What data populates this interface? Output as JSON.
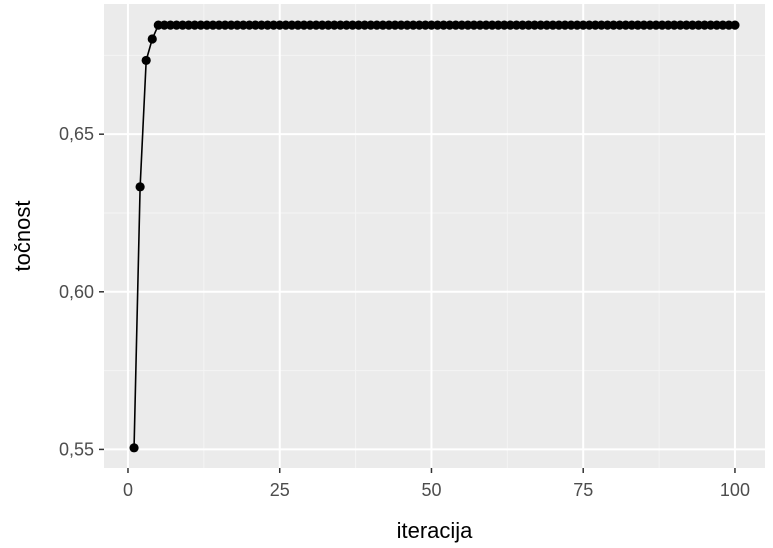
{
  "chart_data": {
    "type": "line",
    "xlabel": "iteracija",
    "ylabel": "točnost",
    "xlim": [
      -3.95,
      104.95
    ],
    "ylim": [
      0.5441,
      0.6913
    ],
    "x_ticks": [
      0,
      25,
      50,
      75,
      100
    ],
    "x_tick_labels": [
      "0",
      "25",
      "50",
      "75",
      "100"
    ],
    "y_ticks": [
      0.55,
      0.6,
      0.65
    ],
    "y_tick_labels": [
      "0,55",
      "0,60",
      "0,65"
    ],
    "grid": true,
    "legend": "none",
    "series": [
      {
        "marker": "point",
        "color": "#000000",
        "x": [
          1,
          2,
          3,
          4,
          5,
          6,
          7,
          8,
          9,
          10,
          11,
          12,
          13,
          14,
          15,
          16,
          17,
          18,
          19,
          20,
          21,
          22,
          23,
          24,
          25,
          26,
          27,
          28,
          29,
          30,
          31,
          32,
          33,
          34,
          35,
          36,
          37,
          38,
          39,
          40,
          41,
          42,
          43,
          44,
          45,
          46,
          47,
          48,
          49,
          50,
          51,
          52,
          53,
          54,
          55,
          56,
          57,
          58,
          59,
          60,
          61,
          62,
          63,
          64,
          65,
          66,
          67,
          68,
          69,
          70,
          71,
          72,
          73,
          74,
          75,
          76,
          77,
          78,
          79,
          80,
          81,
          82,
          83,
          84,
          85,
          86,
          87,
          88,
          89,
          90,
          91,
          92,
          93,
          94,
          95,
          96,
          97,
          98,
          99,
          100
        ],
        "y": [
          0.5505,
          0.6333,
          0.6734,
          0.6802,
          0.6846,
          0.6846,
          0.6846,
          0.6846,
          0.6846,
          0.6846,
          0.6846,
          0.6846,
          0.6846,
          0.6846,
          0.6846,
          0.6846,
          0.6846,
          0.6846,
          0.6846,
          0.6846,
          0.6846,
          0.6846,
          0.6846,
          0.6846,
          0.6846,
          0.6846,
          0.6846,
          0.6846,
          0.6846,
          0.6846,
          0.6846,
          0.6846,
          0.6846,
          0.6846,
          0.6846,
          0.6846,
          0.6846,
          0.6846,
          0.6846,
          0.6846,
          0.6846,
          0.6846,
          0.6846,
          0.6846,
          0.6846,
          0.6846,
          0.6846,
          0.6846,
          0.6846,
          0.6846,
          0.6846,
          0.6846,
          0.6846,
          0.6846,
          0.6846,
          0.6846,
          0.6846,
          0.6846,
          0.6846,
          0.6846,
          0.6846,
          0.6846,
          0.6846,
          0.6846,
          0.6846,
          0.6846,
          0.6846,
          0.6846,
          0.6846,
          0.6846,
          0.6846,
          0.6846,
          0.6846,
          0.6846,
          0.6846,
          0.6846,
          0.6846,
          0.6846,
          0.6846,
          0.6846,
          0.6846,
          0.6846,
          0.6846,
          0.6846,
          0.6846,
          0.6846,
          0.6846,
          0.6846,
          0.6846,
          0.6846,
          0.6846,
          0.6846,
          0.6846,
          0.6846,
          0.6846,
          0.6846,
          0.6846,
          0.6846,
          0.6846,
          0.6846
        ]
      }
    ]
  },
  "colors": {
    "panel_background": "#ebebeb",
    "grid_major": "#ffffff",
    "grid_minor": "#f4f4f4",
    "tick_text": "#4d4d4d",
    "series": "#000000"
  }
}
